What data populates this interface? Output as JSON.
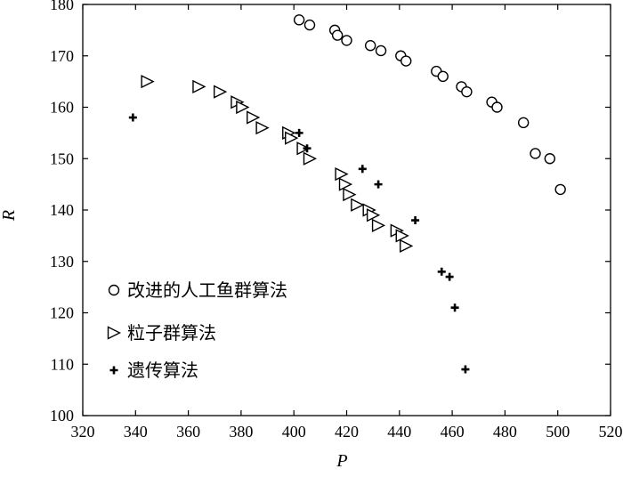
{
  "chart_data": {
    "type": "scatter",
    "xlabel": "P",
    "ylabel": "R",
    "xlim": [
      320,
      520
    ],
    "ylim": [
      100,
      180
    ],
    "xticks": [
      320,
      340,
      360,
      380,
      400,
      420,
      440,
      460,
      480,
      500,
      520
    ],
    "yticks": [
      100,
      110,
      120,
      130,
      140,
      150,
      160,
      170,
      180
    ],
    "grid": false,
    "legend_position": "bottom-left",
    "series": [
      {
        "name": "改进的人工鱼群算法",
        "marker": "circle",
        "points": [
          [
            402,
            177
          ],
          [
            406,
            176
          ],
          [
            415.5,
            175
          ],
          [
            416.5,
            174
          ],
          [
            420,
            173
          ],
          [
            429,
            172
          ],
          [
            433,
            171
          ],
          [
            440.5,
            170
          ],
          [
            442.5,
            169
          ],
          [
            454,
            167
          ],
          [
            456.5,
            166
          ],
          [
            463.5,
            164
          ],
          [
            465.5,
            163
          ],
          [
            475,
            161
          ],
          [
            477,
            160
          ],
          [
            487,
            157
          ],
          [
            491.5,
            151
          ],
          [
            497,
            150
          ],
          [
            501,
            144
          ]
        ]
      },
      {
        "name": "粒子群算法",
        "marker": "triangle-right",
        "points": [
          [
            344.5,
            165
          ],
          [
            364,
            164
          ],
          [
            372,
            163
          ],
          [
            378.5,
            161
          ],
          [
            380.5,
            160
          ],
          [
            384.5,
            158
          ],
          [
            388,
            156
          ],
          [
            398,
            155
          ],
          [
            399,
            154
          ],
          [
            403.5,
            152
          ],
          [
            406,
            150
          ],
          [
            418,
            147
          ],
          [
            419.5,
            145
          ],
          [
            421,
            143
          ],
          [
            424,
            141
          ],
          [
            428.5,
            140
          ],
          [
            430,
            139
          ],
          [
            432,
            137
          ],
          [
            439,
            136
          ],
          [
            441,
            135
          ],
          [
            442.5,
            133
          ]
        ]
      },
      {
        "name": "遗传算法",
        "marker": "plus",
        "points": [
          [
            339,
            158
          ],
          [
            402,
            155
          ],
          [
            405,
            152
          ],
          [
            426,
            148
          ],
          [
            432,
            145
          ],
          [
            446,
            138
          ],
          [
            456,
            128
          ],
          [
            459,
            127
          ],
          [
            461,
            121
          ],
          [
            465,
            109
          ]
        ]
      }
    ]
  }
}
